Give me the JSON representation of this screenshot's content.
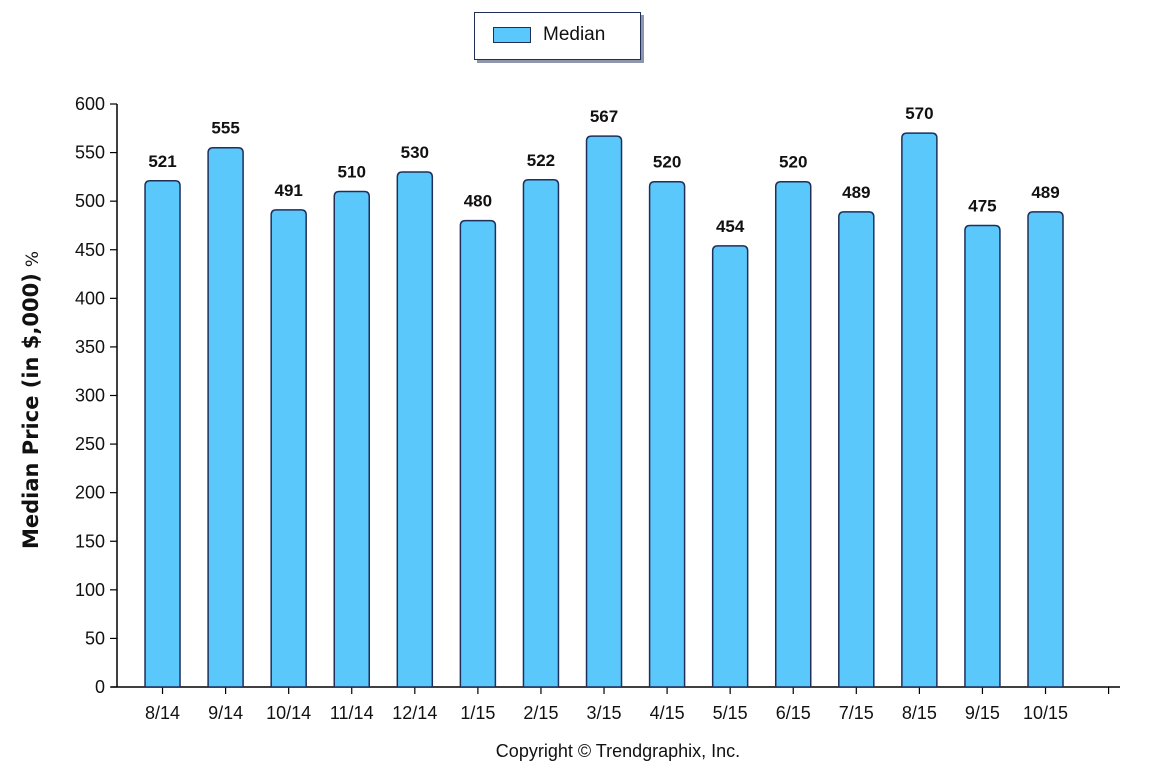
{
  "legend": {
    "label": "Median"
  },
  "y_axis": {
    "label": "Median Price (in $,000)",
    "unit": "%"
  },
  "copyright": "Copyright © Trendgraphix, Inc.",
  "colors": {
    "bar_fill": "#5bc8fb",
    "bar_stroke": "#1f2f5a",
    "axis": "#000000"
  },
  "chart_data": {
    "type": "bar",
    "categories": [
      "8/14",
      "9/14",
      "10/14",
      "11/14",
      "12/14",
      "1/15",
      "2/15",
      "3/15",
      "4/15",
      "5/15",
      "6/15",
      "7/15",
      "8/15",
      "9/15",
      "10/15"
    ],
    "series": [
      {
        "name": "Median",
        "values": [
          521,
          555,
          491,
          510,
          530,
          480,
          522,
          567,
          520,
          454,
          520,
          489,
          570,
          475,
          489
        ]
      }
    ],
    "ylabel": "Median Price (in $,000) %",
    "ylim": [
      0,
      600
    ],
    "yticks": [
      0,
      50,
      100,
      150,
      200,
      250,
      300,
      350,
      400,
      450,
      500,
      550,
      600
    ],
    "grid": false,
    "legend_position": "top-center"
  }
}
